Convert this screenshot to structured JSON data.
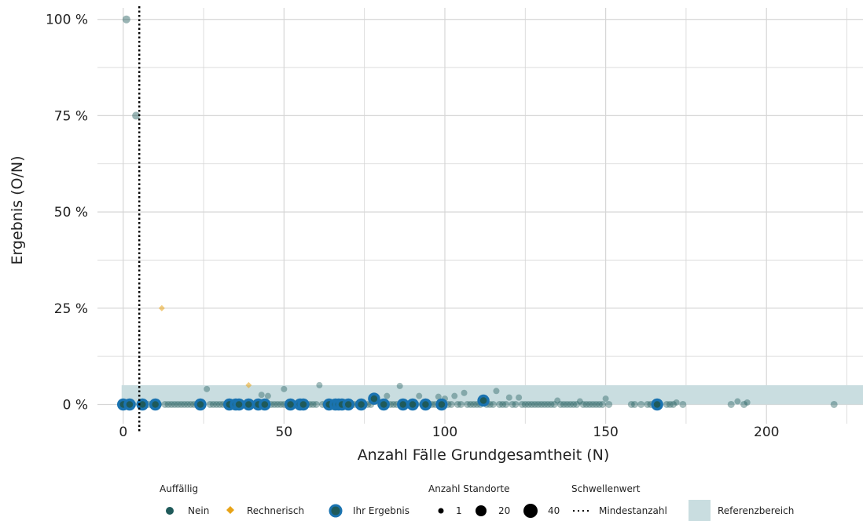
{
  "chart_data": {
    "type": "scatter",
    "xlabel": "Anzahl Fälle Grundgesamtheit (N)",
    "ylabel": "Ergebnis (O/N)",
    "xlim": [
      -8,
      230
    ],
    "ylim": [
      -0.05,
      1.03
    ],
    "x_ticks": [
      0,
      50,
      100,
      150,
      200
    ],
    "x_tick_labels": [
      "0",
      "50",
      "100",
      "150",
      "200"
    ],
    "y_ticks": [
      0,
      0.25,
      0.5,
      0.75,
      1.0
    ],
    "y_tick_labels": [
      "0 %",
      "25 %",
      "50 %",
      "75 %",
      "100 %"
    ],
    "grid": true,
    "threshold": {
      "x": 5,
      "label": "Mindestanzahl"
    },
    "reference_range": {
      "y_min": 0,
      "y_max": 0.05,
      "label": "Referenzbereich"
    },
    "colors": {
      "nein": "#1f5a5a",
      "rechnerisch": "#e8a317",
      "ihr_ergebnis_ring": "#1a73b0",
      "reference": "#c9dde0",
      "grid": "#d6d6d6"
    },
    "series": [
      {
        "name": "Nein",
        "points": [
          [
            1,
            1.0
          ],
          [
            4,
            0.75
          ],
          [
            26,
            0.04
          ],
          [
            50,
            0.04
          ],
          [
            61,
            0.05
          ],
          [
            86,
            0.048
          ],
          [
            43,
            0.025
          ],
          [
            45,
            0.022
          ],
          [
            78,
            0.022
          ],
          [
            82,
            0.022
          ],
          [
            92,
            0.022
          ],
          [
            98,
            0.02
          ],
          [
            100,
            0.015
          ],
          [
            103,
            0.022
          ],
          [
            106,
            0.03
          ],
          [
            116,
            0.035
          ],
          [
            120,
            0.018
          ],
          [
            123,
            0.018
          ],
          [
            135,
            0.01
          ],
          [
            142,
            0.008
          ],
          [
            150,
            0.015
          ],
          [
            172,
            0.005
          ],
          [
            191,
            0.008
          ],
          [
            194,
            0.005
          ],
          [
            0,
            0
          ],
          [
            3,
            0
          ],
          [
            8,
            0
          ],
          [
            11,
            0
          ],
          [
            13,
            0
          ],
          [
            14,
            0
          ],
          [
            15,
            0
          ],
          [
            16,
            0
          ],
          [
            17,
            0
          ],
          [
            18,
            0
          ],
          [
            19,
            0
          ],
          [
            20,
            0
          ],
          [
            21,
            0
          ],
          [
            22,
            0
          ],
          [
            23,
            0
          ],
          [
            24,
            0
          ],
          [
            27,
            0
          ],
          [
            28,
            0
          ],
          [
            29,
            0
          ],
          [
            30,
            0
          ],
          [
            31,
            0
          ],
          [
            32,
            0
          ],
          [
            34,
            0
          ],
          [
            36,
            0
          ],
          [
            37,
            0
          ],
          [
            38,
            0
          ],
          [
            40,
            0
          ],
          [
            41,
            0
          ],
          [
            44,
            0
          ],
          [
            46,
            0
          ],
          [
            47,
            0
          ],
          [
            48,
            0
          ],
          [
            49,
            0
          ],
          [
            50,
            0
          ],
          [
            53,
            0
          ],
          [
            54,
            0
          ],
          [
            57,
            0
          ],
          [
            58,
            0
          ],
          [
            59,
            0
          ],
          [
            60,
            0
          ],
          [
            62,
            0
          ],
          [
            63,
            0
          ],
          [
            66,
            0
          ],
          [
            69,
            0
          ],
          [
            71,
            0
          ],
          [
            72,
            0
          ],
          [
            73,
            0
          ],
          [
            75,
            0
          ],
          [
            76,
            0
          ],
          [
            77,
            0
          ],
          [
            80,
            0
          ],
          [
            83,
            0
          ],
          [
            84,
            0
          ],
          [
            85,
            0
          ],
          [
            88,
            0
          ],
          [
            89,
            0
          ],
          [
            91,
            0
          ],
          [
            93,
            0
          ],
          [
            95,
            0
          ],
          [
            96,
            0
          ],
          [
            97,
            0
          ],
          [
            101,
            0
          ],
          [
            102,
            0
          ],
          [
            104,
            0
          ],
          [
            105,
            0
          ],
          [
            107,
            0
          ],
          [
            108,
            0
          ],
          [
            109,
            0
          ],
          [
            110,
            0
          ],
          [
            111,
            0
          ],
          [
            113,
            0
          ],
          [
            114,
            0
          ],
          [
            115,
            0
          ],
          [
            117,
            0
          ],
          [
            118,
            0
          ],
          [
            119,
            0
          ],
          [
            121,
            0
          ],
          [
            122,
            0
          ],
          [
            124,
            0
          ],
          [
            125,
            0
          ],
          [
            126,
            0
          ],
          [
            127,
            0
          ],
          [
            128,
            0
          ],
          [
            129,
            0
          ],
          [
            130,
            0
          ],
          [
            131,
            0
          ],
          [
            132,
            0
          ],
          [
            133,
            0
          ],
          [
            134,
            0
          ],
          [
            136,
            0
          ],
          [
            137,
            0
          ],
          [
            138,
            0
          ],
          [
            139,
            0
          ],
          [
            140,
            0
          ],
          [
            141,
            0
          ],
          [
            143,
            0
          ],
          [
            144,
            0
          ],
          [
            145,
            0
          ],
          [
            146,
            0
          ],
          [
            147,
            0
          ],
          [
            148,
            0
          ],
          [
            149,
            0
          ],
          [
            151,
            0
          ],
          [
            158,
            0
          ],
          [
            159,
            0
          ],
          [
            161,
            0
          ],
          [
            163,
            0
          ],
          [
            164,
            0
          ],
          [
            169,
            0
          ],
          [
            170,
            0
          ],
          [
            171,
            0
          ],
          [
            174,
            0
          ],
          [
            189,
            0
          ],
          [
            193,
            0
          ],
          [
            221,
            0
          ]
        ]
      },
      {
        "name": "Rechnerisch",
        "points": [
          [
            12,
            0.25
          ],
          [
            39,
            0.05
          ]
        ]
      },
      {
        "name": "Ihr Ergebnis",
        "points": [
          [
            0,
            0
          ],
          [
            2,
            0
          ],
          [
            6,
            0
          ],
          [
            10,
            0
          ],
          [
            24,
            0
          ],
          [
            33,
            0
          ],
          [
            35,
            0
          ],
          [
            36,
            0
          ],
          [
            39,
            0
          ],
          [
            42,
            0
          ],
          [
            44,
            0
          ],
          [
            52,
            0
          ],
          [
            55,
            0
          ],
          [
            56,
            0
          ],
          [
            64,
            0
          ],
          [
            66,
            0
          ],
          [
            67,
            0
          ],
          [
            68,
            0
          ],
          [
            70,
            0
          ],
          [
            74,
            0
          ],
          [
            78,
            0.015
          ],
          [
            81,
            0
          ],
          [
            87,
            0
          ],
          [
            90,
            0
          ],
          [
            94,
            0
          ],
          [
            99,
            0
          ],
          [
            112,
            0.01
          ],
          [
            166,
            0
          ]
        ]
      }
    ],
    "legend": {
      "placement": "bottom",
      "groups": [
        {
          "title": "Auffällig",
          "items": [
            "Nein",
            "Rechnerisch",
            "Ihr Ergebnis"
          ]
        },
        {
          "title": "Anzahl Standorte",
          "items": [
            "1",
            "20",
            "40"
          ]
        },
        {
          "title": "Schwellenwert",
          "items": [
            "Mindestanzahl"
          ]
        },
        {
          "title": "",
          "items": [
            "Referenzbereich"
          ]
        }
      ]
    }
  }
}
